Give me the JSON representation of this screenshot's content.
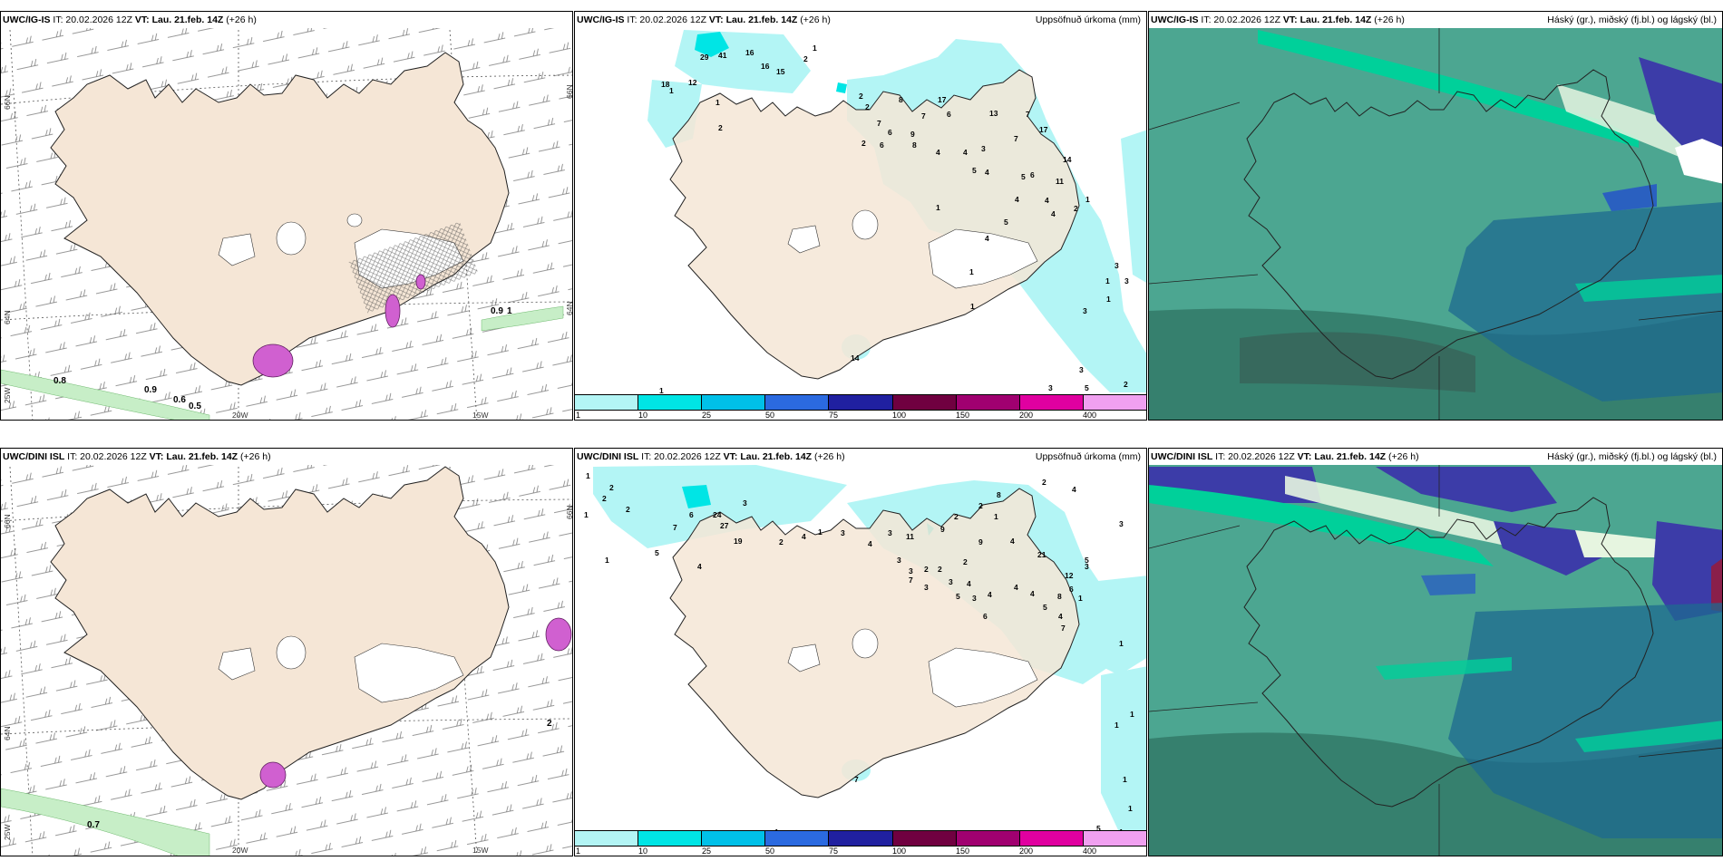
{
  "panels": [
    {
      "id": "tl",
      "title_model": "UWC/IG-IS",
      "title_it": " IT: 20.02.2026 12Z ",
      "title_vt_label": "VT:",
      "title_vt": " Lau. 21.feb. 14Z",
      "title_lead": " (+26 h)",
      "right_label": "",
      "lat_labels": [
        "66N",
        "64N",
        "25W"
      ],
      "lon_labels": [
        "20W",
        "15W"
      ],
      "lat_right": [
        "66N",
        "64N"
      ],
      "values": [
        "0.8",
        "0.9",
        "0.6",
        "0.5",
        "0.9",
        "1"
      ]
    },
    {
      "id": "tm",
      "title_model": "UWC/IG-IS",
      "title_it": " IT: 20.02.2026 12Z ",
      "title_vt_label": "VT:",
      "title_vt": " Lau. 21.feb. 14Z",
      "title_lead": " (+26 h)",
      "right_label": "Uppsöfnuð úrkoma (mm)",
      "values": [
        "29",
        "41",
        "16",
        "16",
        "15",
        "2",
        "1",
        "18",
        "12",
        "1",
        "2",
        "1",
        "2",
        "2",
        "8",
        "17",
        "7",
        "6",
        "7",
        "6",
        "9",
        "13",
        "7",
        "4",
        "2",
        "6",
        "8",
        "4",
        "3",
        "7",
        "17",
        "5",
        "4",
        "5",
        "6",
        "14",
        "11",
        "4",
        "1",
        "4",
        "5",
        "4",
        "2",
        "1",
        "4",
        "3",
        "1",
        "3",
        "1",
        "3",
        "1",
        "3",
        "1",
        "14",
        "3",
        "5",
        "2",
        "1"
      ],
      "colorbar": [
        "1",
        "10",
        "25",
        "50",
        "75",
        "100",
        "150",
        "200",
        "400"
      ]
    },
    {
      "id": "tr",
      "title_model": "UWC/IG-IS",
      "title_it": " IT: 20.02.2026 12Z ",
      "title_vt_label": "VT:",
      "title_vt": " Lau. 21.feb. 14Z",
      "title_lead": " (+26 h)",
      "right_label": "Háský (gr.), miðský (fj.bl.) og lágský (bl.)"
    },
    {
      "id": "bl",
      "title_model": "UWC/DINI ISL",
      "title_it": " IT: 20.02.2026 12Z ",
      "title_vt_label": "VT:",
      "title_vt": " Lau. 21.feb. 14Z",
      "title_lead": " (+26 h)",
      "right_label": "",
      "lat_labels": [
        "66N",
        "64N",
        "25W"
      ],
      "lon_labels": [
        "20W",
        "15W"
      ],
      "lat_right": [
        "66N"
      ],
      "values": [
        "0.7",
        "2"
      ]
    },
    {
      "id": "bm",
      "title_model": "UWC/DINI ISL",
      "title_it": " IT: 20.02.2026 12Z ",
      "title_vt_label": "VT:",
      "title_vt": " Lau. 21.feb. 14Z",
      "title_lead": " (+26 h)",
      "right_label": "Uppsöfnuð úrkoma (mm)",
      "values": [
        "1",
        "2",
        "2",
        "2",
        "1",
        "3",
        "6",
        "7",
        "24",
        "27",
        "19",
        "4",
        "5",
        "2",
        "4",
        "1",
        "1",
        "3",
        "4",
        "3",
        "11",
        "9",
        "2",
        "8",
        "2",
        "1",
        "2",
        "4",
        "3",
        "3",
        "7",
        "9",
        "4",
        "21",
        "2",
        "2",
        "2",
        "3",
        "4",
        "4",
        "12",
        "6",
        "8",
        "3",
        "5",
        "3",
        "4",
        "4",
        "6",
        "5",
        "4",
        "7",
        "1",
        "3",
        "3",
        "5",
        "1",
        "1",
        "1",
        "1",
        "1",
        "1",
        "5",
        "1",
        "7"
      ],
      "colorbar": [
        "1",
        "10",
        "25",
        "50",
        "75",
        "100",
        "150",
        "200",
        "400"
      ]
    },
    {
      "id": "br",
      "title_model": "UWC/DINI ISL",
      "title_it": " IT: 20.02.2026 12Z ",
      "title_vt_label": "VT:",
      "title_vt": " Lau. 21.feb. 14Z",
      "title_lead": " (+26 h)",
      "right_label": "Háský (gr.), miðský (fj.bl.) og lágský (bl.)"
    }
  ],
  "colors": {
    "land": "#f5e6d6",
    "precip1": "#b3f5f5",
    "precip10": "#00e5e5",
    "precip25": "#00c0e8",
    "precip50": "#2b6ae0",
    "precip75": "#2020a0",
    "precip100": "#700040",
    "precip150": "#a00070",
    "precip200": "#e000a0",
    "precip400": "#f0a0f0",
    "cloud_low": "#2e8a7a",
    "cloud_mid": "#3a6fa0",
    "cloud_high": "#00d09a"
  }
}
